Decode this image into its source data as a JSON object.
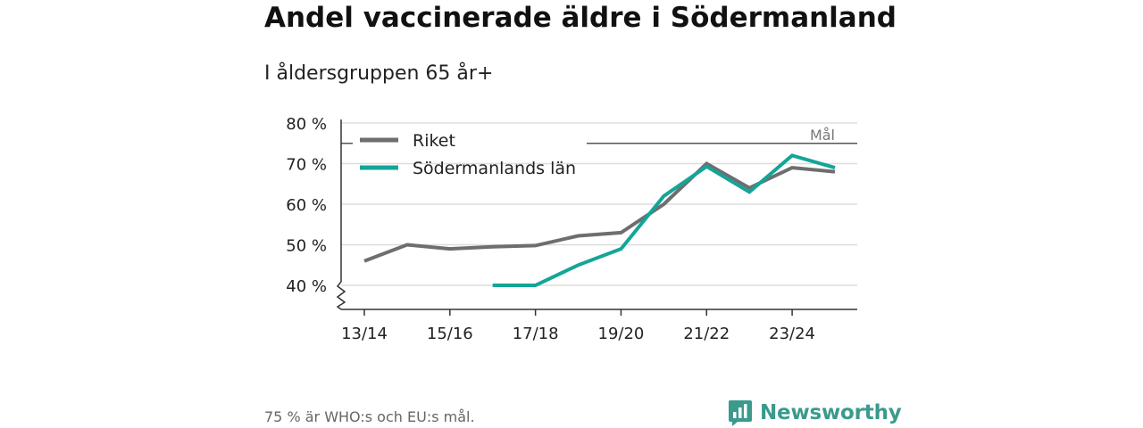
{
  "header": {
    "title": "Andel vaccinerade äldre i Södermanland",
    "subtitle": "I åldersgruppen 65 år+"
  },
  "footer": {
    "note": "75 % är WHO:s och EU:s mål.",
    "brand": "Newsworthy"
  },
  "colors": {
    "riket": "#6e6e70",
    "lan": "#14a598",
    "goal": "#555555",
    "grid": "#dddddd",
    "axis": "#333333",
    "brand": "#3a9a8d"
  },
  "chart_data": {
    "type": "line",
    "title": "Andel vaccinerade äldre i Södermanland",
    "subtitle": "I åldersgruppen 65 år+",
    "x": [
      "13/14",
      "14/15",
      "15/16",
      "16/17",
      "17/18",
      "18/19",
      "19/20",
      "20/21",
      "21/22",
      "22/23",
      "23/24",
      "24/25"
    ],
    "x_tick_labels": [
      "13/14",
      "15/16",
      "17/18",
      "19/20",
      "21/22",
      "23/24"
    ],
    "y_ticks": [
      40,
      50,
      60,
      70,
      80
    ],
    "y_tick_labels": [
      "40 %",
      "50 %",
      "60 %",
      "70 %",
      "80 %"
    ],
    "ylim": [
      34,
      80
    ],
    "y_axis_break": true,
    "grid": true,
    "legend_position": "top-left",
    "series": [
      {
        "name": "Riket",
        "color": "#6e6e70",
        "values": [
          46,
          50,
          49,
          49.5,
          49.8,
          52.2,
          53,
          60,
          70,
          64,
          69,
          68
        ]
      },
      {
        "name": "Södermanlands län",
        "color": "#14a598",
        "values": [
          null,
          null,
          null,
          40,
          40,
          45,
          49,
          62,
          69.3,
          63,
          72,
          69
        ]
      }
    ],
    "reference_line": {
      "label": "Mål",
      "value": 75
    }
  }
}
